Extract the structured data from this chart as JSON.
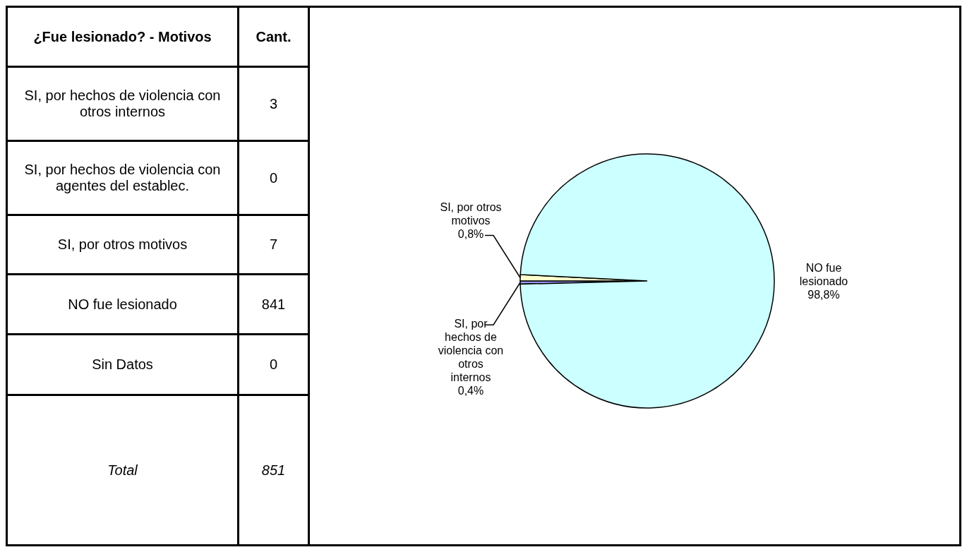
{
  "chart_data": [
    {
      "type": "other",
      "categories": [
        "SI, por hechos de violencia con otros internos",
        "SI, por hechos de violencia con agentes del establec.",
        "SI, por otros motivos",
        "NO fue lesionado",
        "Sin Datos"
      ],
      "values": [
        3,
        0,
        7,
        841,
        0
      ],
      "data_labels": true,
      "totals": [
        "851"
      ],
      "annotations": [
        "¿Fue lesionado? - Motivos",
        "Cant.",
        "Total"
      ]
    },
    {
      "type": "pie",
      "categories": [
        "SI, por hechos de violencia con otros internos",
        null,
        "SI, por otros motivos",
        "NO fue lesionado",
        null
      ],
      "values": [
        0.4,
        0,
        0.8,
        98.8,
        0
      ],
      "colors": [
        "#9999ff",
        "#993366",
        "#ffffcc",
        "#ccffff",
        "#660066"
      ],
      "value_labels": [
        "0,4%",
        null,
        "0,8%",
        "98,8%",
        null
      ],
      "legend": false
    }
  ]
}
